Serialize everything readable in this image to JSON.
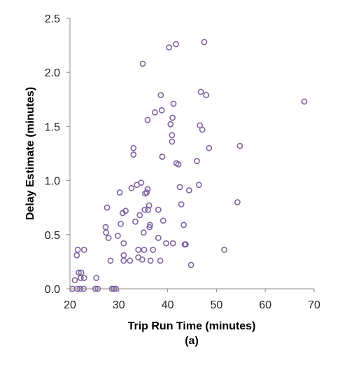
{
  "chart_data": {
    "type": "scatter",
    "xlabel": "Trip Run Time (minutes)",
    "caption": "(a)",
    "ylabel": "Delay Estimate (minutes)",
    "xlim": [
      20,
      70
    ],
    "ylim": [
      0,
      2.5
    ],
    "x_ticks": [
      "20",
      "30",
      "40",
      "50",
      "60",
      "70"
    ],
    "y_ticks": [
      "0.0",
      "0.5",
      "1.0",
      "1.5",
      "2.0",
      "2.5"
    ],
    "grid": false,
    "legend": "none",
    "marker_color": "#8064a2",
    "points": [
      [
        20.5,
        0.0
      ],
      [
        21.0,
        0.08
      ],
      [
        21.5,
        0.0
      ],
      [
        21.8,
        0.15
      ],
      [
        22.1,
        0.0
      ],
      [
        22.3,
        0.15
      ],
      [
        22.8,
        0.0
      ],
      [
        22.2,
        0.1
      ],
      [
        22.9,
        0.1
      ],
      [
        21.4,
        0.31
      ],
      [
        21.6,
        0.36
      ],
      [
        22.9,
        0.36
      ],
      [
        25.2,
        0.0
      ],
      [
        25.4,
        0.1
      ],
      [
        25.7,
        0.0
      ],
      [
        28.6,
        0.0
      ],
      [
        29.0,
        0.0
      ],
      [
        29.4,
        0.0
      ],
      [
        27.3,
        0.57
      ],
      [
        27.4,
        0.52
      ],
      [
        27.6,
        0.75
      ],
      [
        27.9,
        0.47
      ],
      [
        28.3,
        0.26
      ],
      [
        29.8,
        0.49
      ],
      [
        30.2,
        0.89
      ],
      [
        30.4,
        0.6
      ],
      [
        30.8,
        0.7
      ],
      [
        31.0,
        0.42
      ],
      [
        31.0,
        0.31
      ],
      [
        31.0,
        0.26
      ],
      [
        31.4,
        0.72
      ],
      [
        32.3,
        0.26
      ],
      [
        32.6,
        0.93
      ],
      [
        33.0,
        1.3
      ],
      [
        33.0,
        1.24
      ],
      [
        33.4,
        0.62
      ],
      [
        33.7,
        0.96
      ],
      [
        34.0,
        0.36
      ],
      [
        34.0,
        0.29
      ],
      [
        34.3,
        0.68
      ],
      [
        34.6,
        0.98
      ],
      [
        34.8,
        0.27
      ],
      [
        34.9,
        2.08
      ],
      [
        35.1,
        0.52
      ],
      [
        35.2,
        0.36
      ],
      [
        35.3,
        0.73
      ],
      [
        35.4,
        0.88
      ],
      [
        35.7,
        0.89
      ],
      [
        35.9,
        0.92
      ],
      [
        35.9,
        1.56
      ],
      [
        36.0,
        0.73
      ],
      [
        36.2,
        0.77
      ],
      [
        36.3,
        0.57
      ],
      [
        36.4,
        0.59
      ],
      [
        36.5,
        0.26
      ],
      [
        37.0,
        0.36
      ],
      [
        37.4,
        1.63
      ],
      [
        38.1,
        0.73
      ],
      [
        38.1,
        0.47
      ],
      [
        38.5,
        0.26
      ],
      [
        38.6,
        1.79
      ],
      [
        38.8,
        1.65
      ],
      [
        38.9,
        1.22
      ],
      [
        39.1,
        0.63
      ],
      [
        39.7,
        0.42
      ],
      [
        40.3,
        2.23
      ],
      [
        40.6,
        1.52
      ],
      [
        40.9,
        1.36
      ],
      [
        40.9,
        1.42
      ],
      [
        41.0,
        1.58
      ],
      [
        41.1,
        0.42
      ],
      [
        41.2,
        1.71
      ],
      [
        41.7,
        2.26
      ],
      [
        41.8,
        1.16
      ],
      [
        42.2,
        1.15
      ],
      [
        42.5,
        0.94
      ],
      [
        42.8,
        0.78
      ],
      [
        43.3,
        0.59
      ],
      [
        43.5,
        0.41
      ],
      [
        43.7,
        0.41
      ],
      [
        44.4,
        0.91
      ],
      [
        44.8,
        0.22
      ],
      [
        46.0,
        1.18
      ],
      [
        46.4,
        0.96
      ],
      [
        46.6,
        1.51
      ],
      [
        46.8,
        1.82
      ],
      [
        47.1,
        1.47
      ],
      [
        47.5,
        2.28
      ],
      [
        47.9,
        1.79
      ],
      [
        48.5,
        1.3
      ],
      [
        51.6,
        0.36
      ],
      [
        54.3,
        0.8
      ],
      [
        54.8,
        1.32
      ],
      [
        68.0,
        1.73
      ]
    ]
  }
}
